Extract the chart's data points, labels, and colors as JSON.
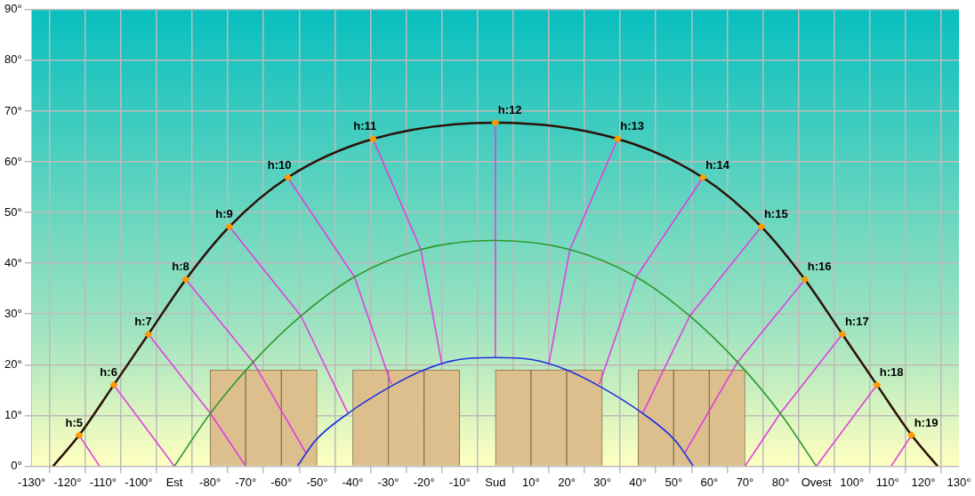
{
  "chart_data": {
    "type": "line",
    "xlim": [
      -130,
      130
    ],
    "ylim": [
      0,
      90
    ],
    "xticks": [
      {
        "value": -130,
        "label": "-130°"
      },
      {
        "value": -120,
        "label": "-120°"
      },
      {
        "value": -110,
        "label": "-110°"
      },
      {
        "value": -100,
        "label": "-100°"
      },
      {
        "value": -90,
        "label": "Est"
      },
      {
        "value": -80,
        "label": "-80°"
      },
      {
        "value": -70,
        "label": "-70°"
      },
      {
        "value": -60,
        "label": "-60°"
      },
      {
        "value": -50,
        "label": "-50°"
      },
      {
        "value": -40,
        "label": "-40°"
      },
      {
        "value": -30,
        "label": "-30°"
      },
      {
        "value": -20,
        "label": "-20°"
      },
      {
        "value": -10,
        "label": "-10°"
      },
      {
        "value": 0,
        "label": "Sud"
      },
      {
        "value": 10,
        "label": "10°"
      },
      {
        "value": 20,
        "label": "20°"
      },
      {
        "value": 30,
        "label": "30°"
      },
      {
        "value": 40,
        "label": "40°"
      },
      {
        "value": 50,
        "label": "50°"
      },
      {
        "value": 60,
        "label": "60°"
      },
      {
        "value": 70,
        "label": "70°"
      },
      {
        "value": 80,
        "label": "80°"
      },
      {
        "value": 90,
        "label": "Ovest"
      },
      {
        "value": 100,
        "label": "100°"
      },
      {
        "value": 110,
        "label": "110°"
      },
      {
        "value": 120,
        "label": "120°"
      },
      {
        "value": 130,
        "label": "130°"
      }
    ],
    "yticks": [
      {
        "value": 0,
        "label": "0°"
      },
      {
        "value": 10,
        "label": "10°"
      },
      {
        "value": 20,
        "label": "20°"
      },
      {
        "value": 30,
        "label": "30°"
      },
      {
        "value": 40,
        "label": "40°"
      },
      {
        "value": 50,
        "label": "50°"
      },
      {
        "value": 60,
        "label": "60°"
      },
      {
        "value": 70,
        "label": "70°"
      },
      {
        "value": 80,
        "label": "80°"
      },
      {
        "value": 90,
        "label": "90°"
      }
    ],
    "grid": true,
    "legend": false,
    "marker": "none",
    "line_style": "solid",
    "annotations": [
      {
        "text": "h:5",
        "x": -116.7,
        "y": 6.1
      },
      {
        "text": "h:6",
        "x": -107,
        "y": 16
      },
      {
        "text": "h:7",
        "x": -97.3,
        "y": 26
      },
      {
        "text": "h:8",
        "x": -86.8,
        "y": 36.8
      },
      {
        "text": "h:9",
        "x": -74.6,
        "y": 47.2
      },
      {
        "text": "h:10",
        "x": -58.2,
        "y": 56.9
      },
      {
        "text": "h:11",
        "x": -34.3,
        "y": 64.5
      },
      {
        "text": "h:12",
        "x": 0,
        "y": 67.7
      },
      {
        "text": "h:13",
        "x": 34.3,
        "y": 64.5
      },
      {
        "text": "h:14",
        "x": 58.2,
        "y": 56.9
      },
      {
        "text": "h:15",
        "x": 74.6,
        "y": 47.2
      },
      {
        "text": "h:16",
        "x": 86.8,
        "y": 36.8
      },
      {
        "text": "h:17",
        "x": 97.3,
        "y": 26
      },
      {
        "text": "h:18",
        "x": 107,
        "y": 16
      },
      {
        "text": "h:19",
        "x": 116.7,
        "y": 6.1
      }
    ],
    "series": [
      {
        "type": "bar",
        "color": "#dcbf8c",
        "x": [
          -75,
          -65,
          -55,
          -35,
          -25,
          -15,
          5,
          15,
          25,
          45,
          55,
          65
        ],
        "values": [
          19,
          19,
          19,
          19,
          19,
          19,
          19,
          19,
          19,
          19,
          19,
          19
        ]
      },
      {
        "color": "#e040e0",
        "x": [
          -116.7,
          -111
        ],
        "values": [
          6.1,
          0
        ]
      },
      {
        "color": "#e040e0",
        "x": [
          -107,
          -90
        ],
        "values": [
          16,
          0
        ]
      },
      {
        "color": "#e040e0",
        "x": [
          -97.3,
          -79.9,
          -70
        ],
        "values": [
          26,
          10.4,
          0
        ]
      },
      {
        "color": "#e040e0",
        "x": [
          -86.8,
          -67.9,
          -53.2
        ],
        "values": [
          36.8,
          20.5,
          2.7
        ]
      },
      {
        "color": "#e040e0",
        "x": [
          -74.6,
          -54.5,
          -41.3
        ],
        "values": [
          47.2,
          29.6,
          10.4
        ]
      },
      {
        "color": "#e040e0",
        "x": [
          -58.2,
          -39.5,
          -29.2
        ],
        "values": [
          56.9,
          37.3,
          16.2
        ]
      },
      {
        "color": "#e040e0",
        "x": [
          -34.3,
          -20.9,
          -15
        ],
        "values": [
          64.5,
          42.7,
          20.1
        ]
      },
      {
        "color": "#e040e0",
        "x": [
          0,
          0
        ],
        "values": [
          67.7,
          21.4
        ]
      },
      {
        "color": "#e040e0",
        "x": [
          34.3,
          20.9,
          15
        ],
        "values": [
          64.5,
          42.7,
          20.1
        ]
      },
      {
        "color": "#e040e0",
        "x": [
          58.2,
          39.5,
          29.2
        ],
        "values": [
          56.9,
          37.3,
          16.2
        ]
      },
      {
        "color": "#e040e0",
        "x": [
          74.6,
          54.5,
          41.3
        ],
        "values": [
          47.2,
          29.6,
          10.4
        ]
      },
      {
        "color": "#e040e0",
        "x": [
          86.8,
          67.9,
          53.2
        ],
        "values": [
          36.8,
          20.5,
          2.7
        ]
      },
      {
        "color": "#e040e0",
        "x": [
          97.3,
          79.9,
          70
        ],
        "values": [
          26,
          10.4,
          0
        ]
      },
      {
        "color": "#e040e0",
        "x": [
          107,
          90
        ],
        "values": [
          16,
          0
        ]
      },
      {
        "color": "#e040e0",
        "x": [
          116.7,
          111
        ],
        "values": [
          6.1,
          0
        ]
      },
      {
        "color": "#2e9a2e",
        "x": [
          -90,
          -79.9,
          -67.9,
          -54.5,
          -39.5,
          -20.9,
          0,
          20.9,
          39.5,
          54.5,
          67.9,
          79.9,
          90
        ],
        "values": [
          0,
          10.4,
          20.5,
          29.6,
          37.3,
          42.7,
          44.5,
          42.7,
          37.3,
          29.6,
          20.5,
          10.4,
          0
        ]
      },
      {
        "color": "#2030e0",
        "x": [
          -55.5,
          -50.5,
          -41.3,
          -29.6,
          -19.9,
          -10.2,
          0,
          10.2,
          19.9,
          29.6,
          41.3,
          50.5,
          55.5
        ],
        "values": [
          0,
          5,
          10.4,
          15.6,
          19,
          21,
          21.4,
          21,
          19,
          15.6,
          10.4,
          5,
          0
        ]
      },
      {
        "color": "#2a1208",
        "x": [
          -124,
          -116.7,
          -107,
          -97.3,
          -86.8,
          -74.6,
          -58.2,
          -34.3,
          0,
          34.3,
          58.2,
          74.6,
          86.8,
          97.3,
          107,
          116.7,
          124
        ],
        "values": [
          0,
          6.1,
          16,
          26,
          36.8,
          47.2,
          56.9,
          64.5,
          67.7,
          64.5,
          56.9,
          47.2,
          36.8,
          26,
          16,
          6.1,
          0
        ]
      },
      {
        "type": "scatter",
        "color": "#ff9900",
        "marker": "diamond",
        "x": [
          -116.7,
          -107,
          -97.3,
          -86.8,
          -74.6,
          -58.2,
          -34.3,
          0,
          34.3,
          58.2,
          74.6,
          86.8,
          97.3,
          107,
          116.7
        ],
        "values": [
          6.1,
          16,
          26,
          36.8,
          47.2,
          56.9,
          64.5,
          67.7,
          64.5,
          56.9,
          47.2,
          36.8,
          26,
          16,
          6.1
        ]
      }
    ]
  }
}
